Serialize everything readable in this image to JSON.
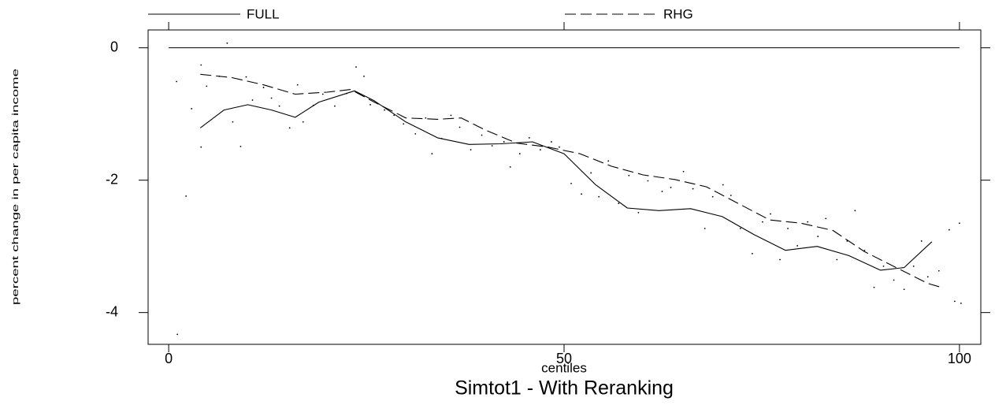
{
  "chart_data": {
    "type": "line",
    "title": "Simtot1 - With Reranking",
    "x_label": "centiles",
    "y_label": "percent change in per capita income",
    "xlim": [
      -2.6,
      102.7
    ],
    "ylim": [
      0.27,
      -4.48
    ],
    "xticks": [
      0,
      50,
      100
    ],
    "yticks": [
      0,
      -2,
      -4
    ],
    "reference_line": 0,
    "series": [
      {
        "name": "FULL",
        "color": "#000000",
        "dash": false,
        "x": [
          4,
          7,
          10,
          13,
          16,
          19,
          23.5,
          26,
          30,
          34,
          38,
          42,
          46,
          50,
          54,
          58,
          62,
          66,
          70,
          74,
          78,
          82,
          86,
          90,
          93,
          96.5
        ],
        "values": [
          -1.21,
          -0.94,
          -0.86,
          -0.94,
          -1.05,
          -0.82,
          -0.65,
          -0.8,
          -1.12,
          -1.36,
          -1.46,
          -1.45,
          -1.42,
          -1.6,
          -2.07,
          -2.42,
          -2.46,
          -2.43,
          -2.55,
          -2.82,
          -3.06,
          -3.0,
          -3.14,
          -3.36,
          -3.32,
          -2.93
        ]
      },
      {
        "name": "RHG",
        "color": "#000000",
        "dash": true,
        "x": [
          4,
          8,
          12,
          16,
          20,
          23,
          26,
          30,
          34,
          37,
          40,
          44,
          48,
          52,
          56,
          60,
          64,
          68,
          72,
          76,
          80,
          84,
          88,
          92,
          96,
          98
        ],
        "values": [
          -0.4,
          -0.45,
          -0.56,
          -0.7,
          -0.67,
          -0.63,
          -0.82,
          -1.06,
          -1.08,
          -1.06,
          -1.24,
          -1.44,
          -1.5,
          -1.6,
          -1.79,
          -1.92,
          -1.99,
          -2.1,
          -2.35,
          -2.6,
          -2.65,
          -2.76,
          -3.08,
          -3.32,
          -3.56,
          -3.63
        ]
      }
    ],
    "points": {
      "color": "#000000",
      "x": [
        1.1,
        1,
        2.2,
        2.9,
        4.1,
        4.1,
        4.8,
        6.4,
        7.4,
        8.1,
        9.1,
        9.8,
        10.6,
        12,
        13,
        14,
        15.3,
        16.3,
        17,
        18.3,
        19.5,
        21,
        22.5,
        23.7,
        24.7,
        25.5,
        27.3,
        28.5,
        29.7,
        31.2,
        32.5,
        33.3,
        34.5,
        35.7,
        36.8,
        38.2,
        39.6,
        40.9,
        42.4,
        43.2,
        44.4,
        45.6,
        47,
        48.4,
        49.4,
        50.9,
        52.2,
        53.4,
        54.4,
        55.6,
        56.9,
        58.2,
        59.4,
        60.6,
        62.4,
        63.5,
        65.1,
        66.3,
        67.8,
        68.8,
        70.1,
        71.1,
        72.3,
        73.8,
        75.1,
        76.1,
        77.3,
        78.3,
        79.5,
        80.8,
        82.1,
        83.1,
        84.5,
        85.8,
        86.8,
        88,
        89.2,
        90.4,
        91.7,
        93,
        94.2,
        95.2,
        96,
        97.4,
        98.7,
        99.4,
        100.2,
        100
      ],
      "values": [
        -4.33,
        -0.51,
        -2.24,
        -0.92,
        -1.5,
        -0.26,
        -0.58,
        -0.43,
        0.07,
        -1.12,
        -1.49,
        -0.44,
        -0.79,
        -0.6,
        -0.76,
        -0.88,
        -1.21,
        -0.56,
        -1.12,
        -0.87,
        -0.7,
        -0.88,
        -0.69,
        -0.29,
        -0.43,
        -0.86,
        -0.94,
        -1.02,
        -1.15,
        -1.3,
        -1.06,
        -1.6,
        -1.37,
        -1.02,
        -1.2,
        -1.54,
        -1.32,
        -1.48,
        -1.42,
        -1.8,
        -1.6,
        -1.36,
        -1.54,
        -1.42,
        -1.5,
        -2.05,
        -2.21,
        -1.89,
        -2.25,
        -1.71,
        -2.35,
        -1.93,
        -2.49,
        -2.01,
        -2.17,
        -2.11,
        -1.87,
        -2.13,
        -2.73,
        -2.25,
        -2.07,
        -2.23,
        -2.73,
        -3.11,
        -2.63,
        -2.51,
        -3.2,
        -2.73,
        -2.99,
        -2.63,
        -2.85,
        -2.58,
        -3.2,
        -2.92,
        -2.46,
        -3.06,
        -3.62,
        -3.3,
        -3.51,
        -3.65,
        -3.3,
        -2.92,
        -3.46,
        -3.37,
        -2.75,
        -3.83,
        -3.86,
        -2.65
      ]
    }
  }
}
